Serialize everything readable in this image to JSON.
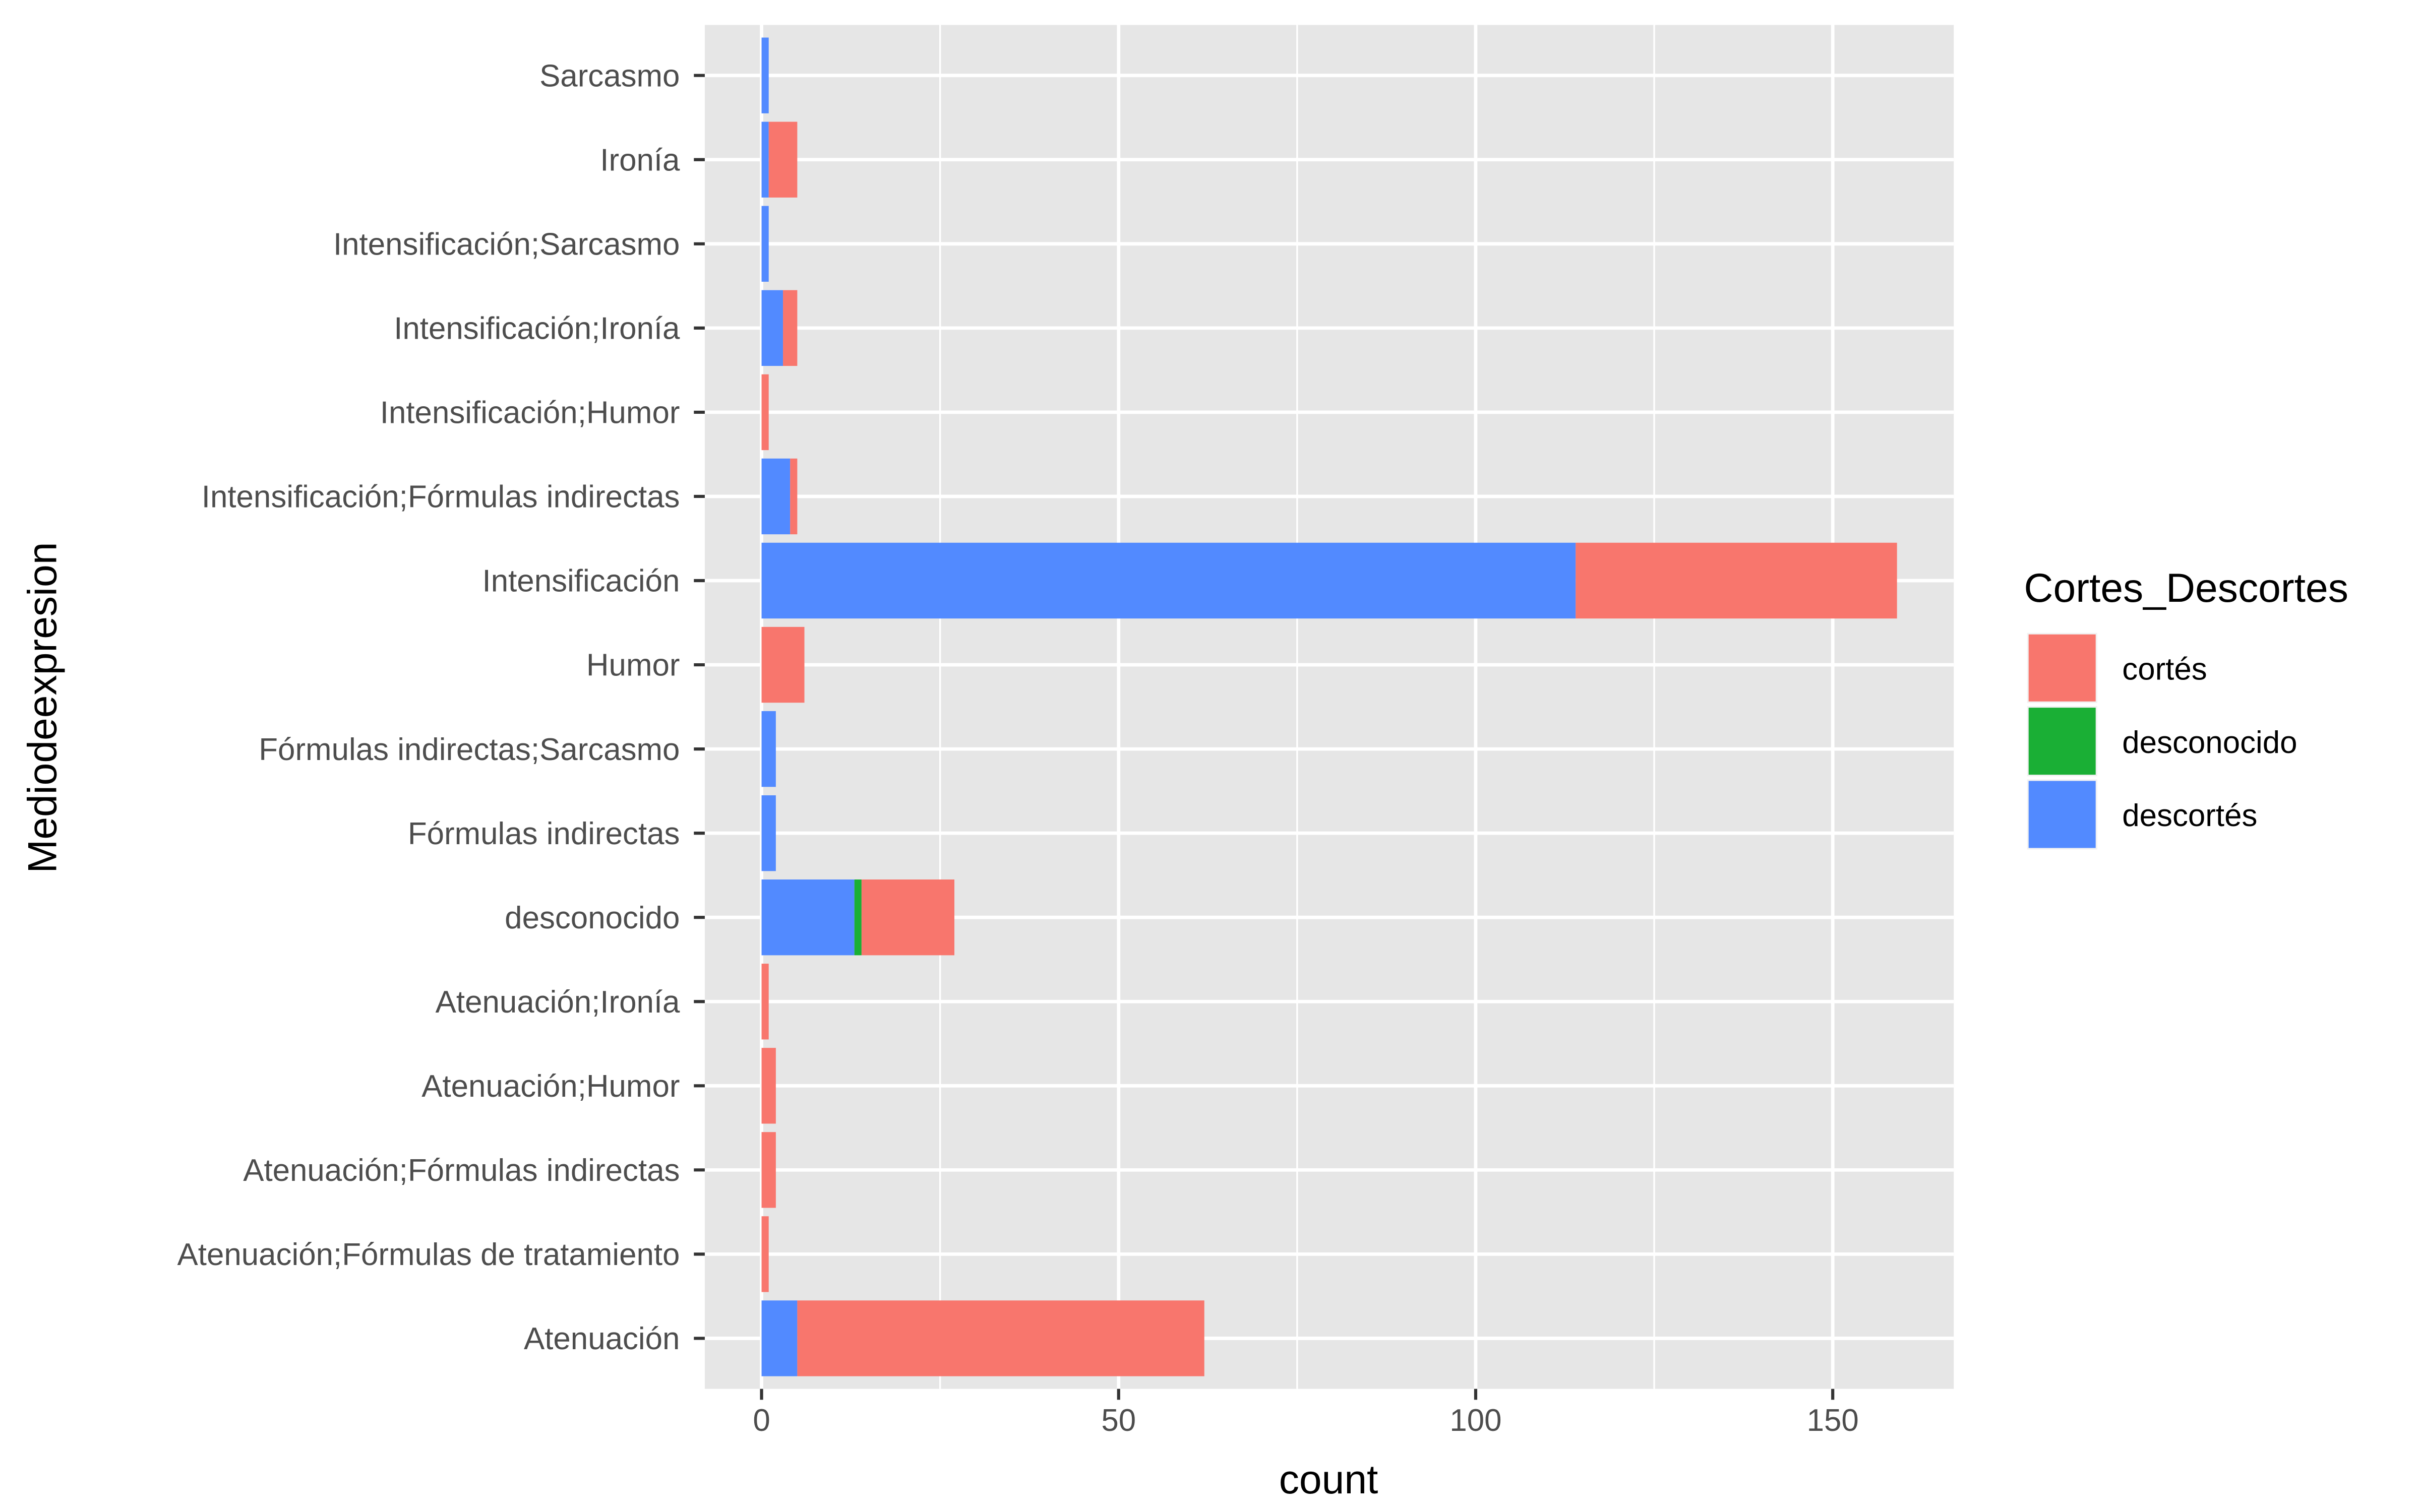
{
  "chart_data": {
    "type": "bar",
    "orientation": "horizontal",
    "stacked": true,
    "title": "",
    "xlabel": "count",
    "ylabel": "Mediodeexpresion",
    "xlim": [
      -7.95,
      166.95
    ],
    "xticks": [
      0,
      50,
      100,
      150
    ],
    "grid": true,
    "legend": {
      "title": "Cortes_Descortes",
      "placement": "right"
    },
    "categories": [
      "Atenuación",
      "Atenuación;Fórmulas de tratamiento",
      "Atenuación;Fórmulas indirectas",
      "Atenuación;Humor",
      "Atenuación;Ironía",
      "desconocido",
      "Fórmulas indirectas",
      "Fórmulas indirectas;Sarcasmo",
      "Humor",
      "Intensificación",
      "Intensificación;Fórmulas indirectas",
      "Intensificación;Humor",
      "Intensificación;Ironía",
      "Intensificación;Sarcasmo",
      "Ironía",
      "Sarcasmo"
    ],
    "series": [
      {
        "name": "cortés",
        "color": "#F8766D",
        "values": [
          57,
          1,
          2,
          2,
          1,
          13,
          0,
          0,
          6,
          45,
          1,
          1,
          2,
          0,
          4,
          0
        ]
      },
      {
        "name": "desconocido",
        "color": "#1AAF35",
        "values": [
          0,
          0,
          0,
          0,
          0,
          1,
          0,
          0,
          0,
          0,
          0,
          0,
          0,
          0,
          0,
          0
        ]
      },
      {
        "name": "descortés",
        "color": "#528AFF",
        "values": [
          5,
          0,
          0,
          0,
          0,
          13,
          2,
          2,
          0,
          114,
          4,
          0,
          3,
          1,
          1,
          1
        ]
      }
    ]
  }
}
